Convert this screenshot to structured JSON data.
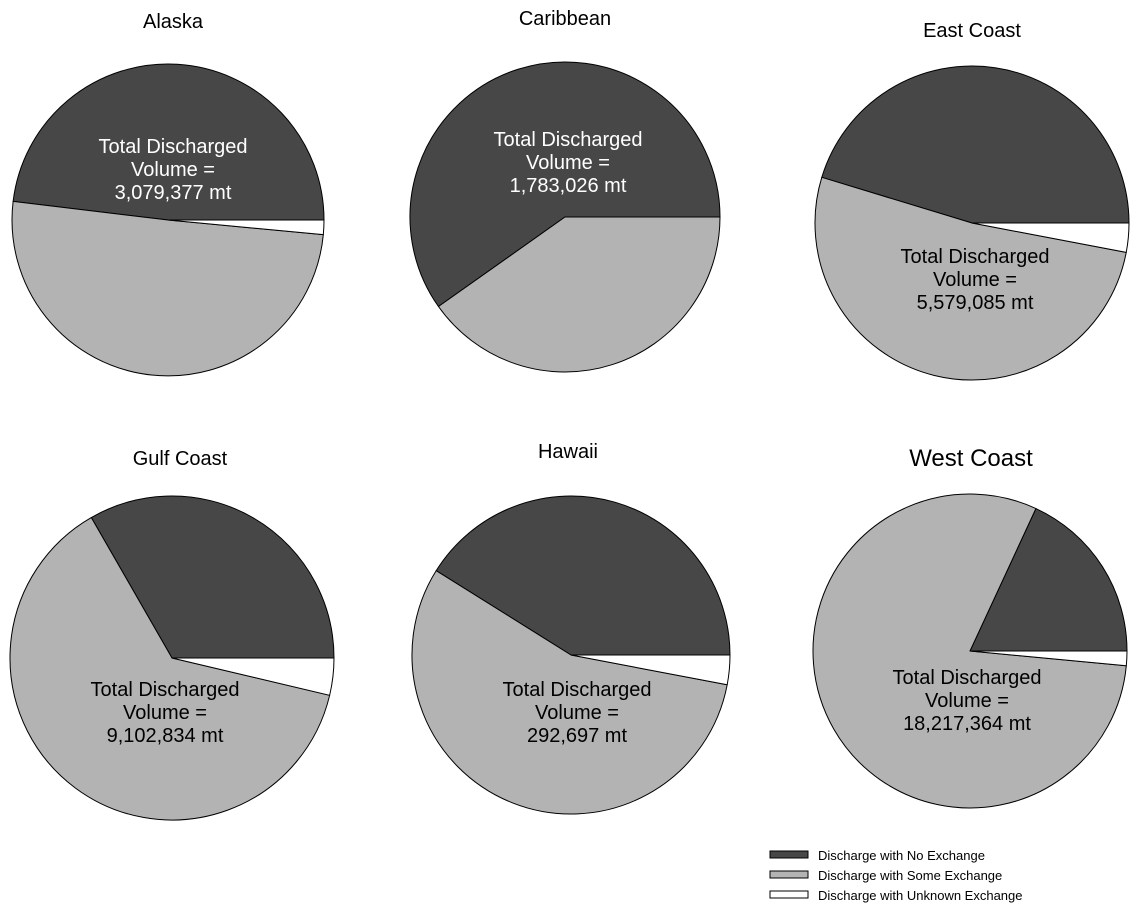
{
  "colors": {
    "no_exchange": "#474747",
    "some_exchange": "#b3b3b3",
    "unknown_exchange": "#ffffff",
    "outline": "#000000"
  },
  "chart_data": [
    {
      "type": "pie",
      "title": "Alaska",
      "categories": [
        "Discharge with No Exchange",
        "Discharge with Some Exchange",
        "Discharge with Unknown Exchange"
      ],
      "values": [
        48.1,
        50.4,
        1.5
      ],
      "annotation": [
        "Total Discharged",
        "Volume =",
        "3,079,377 mt"
      ],
      "annotation_on": "no_exchange"
    },
    {
      "type": "pie",
      "title": "Caribbean",
      "categories": [
        "Discharge with No Exchange",
        "Discharge with Some Exchange",
        "Discharge with Unknown Exchange"
      ],
      "values": [
        59.8,
        40.2,
        0
      ],
      "annotation": [
        "Total Discharged",
        "Volume =",
        "1,783,026 mt"
      ],
      "annotation_on": "no_exchange"
    },
    {
      "type": "pie",
      "title": "East Coast",
      "categories": [
        "Discharge with No Exchange",
        "Discharge with Some Exchange",
        "Discharge with Unknown Exchange"
      ],
      "values": [
        45.3,
        51.7,
        3.0
      ],
      "annotation": [
        "Total Discharged",
        "Volume =",
        "5,579,085 mt"
      ],
      "annotation_on": "some_exchange"
    },
    {
      "type": "pie",
      "title": "Gulf Coast",
      "categories": [
        "Discharge with No Exchange",
        "Discharge with Some Exchange",
        "Discharge with Unknown Exchange"
      ],
      "values": [
        33.3,
        63.0,
        3.7
      ],
      "annotation": [
        "Total Discharged",
        "Volume =",
        "9,102,834 mt"
      ],
      "annotation_on": "some_exchange"
    },
    {
      "type": "pie",
      "title": "Hawaii",
      "categories": [
        "Discharge with No Exchange",
        "Discharge with Some Exchange",
        "Discharge with Unknown Exchange"
      ],
      "values": [
        41.1,
        55.9,
        3.0
      ],
      "annotation": [
        "Total Discharged",
        "Volume =",
        "292,697 mt"
      ],
      "annotation_on": "some_exchange"
    },
    {
      "type": "pie",
      "title": "West Coast",
      "categories": [
        "Discharge with No Exchange",
        "Discharge with Some Exchange",
        "Discharge with Unknown Exchange"
      ],
      "values": [
        18.1,
        80.4,
        1.5
      ],
      "annotation": [
        "Total Discharged",
        "Volume =",
        "18,217,364 mt"
      ],
      "annotation_on": "some_exchange"
    }
  ],
  "legend": {
    "position": "bottom-right",
    "items": [
      {
        "key": "no_exchange",
        "label": "Discharge with No Exchange"
      },
      {
        "key": "some_exchange",
        "label": "Discharge with Some Exchange"
      },
      {
        "key": "unknown_exchange",
        "label": "Discharge with Unknown Exchange"
      }
    ]
  }
}
